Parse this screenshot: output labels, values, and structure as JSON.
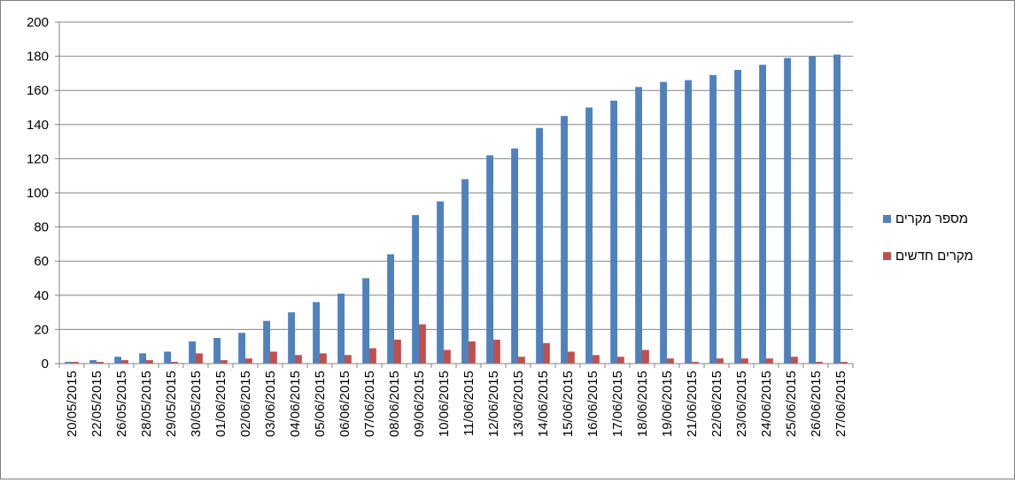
{
  "chart_data": {
    "type": "bar",
    "title": "",
    "xlabel": "",
    "ylabel": "",
    "ylim": [
      0,
      200
    ],
    "yticks": [
      0,
      20,
      40,
      60,
      80,
      100,
      120,
      140,
      160,
      180,
      200
    ],
    "grid": "horizontal",
    "legend_position": "right",
    "categories": [
      "20/05/2015",
      "22/05/2015",
      "26/05/2015",
      "28/05/2015",
      "29/05/2015",
      "30/05/2015",
      "01/06/2015",
      "02/06/2015",
      "03/06/2015",
      "04/06/2015",
      "05/06/2015",
      "06/06/2015",
      "07/06/2015",
      "08/06/2015",
      "09/06/2015",
      "10/06/2015",
      "11/06/2015",
      "12/06/2015",
      "13/06/2015",
      "14/06/2015",
      "15/06/2015",
      "16/06/2015",
      "17/06/2015",
      "18/06/2015",
      "19/06/2015",
      "21/06/2015",
      "22/06/2015",
      "23/06/2015",
      "24/06/2015",
      "25/06/2015",
      "26/06/2015",
      "27/06/2015"
    ],
    "series": [
      {
        "name": "מספר מקרים",
        "color": "#4f81bd",
        "values": [
          1,
          2,
          4,
          6,
          7,
          13,
          15,
          18,
          25,
          30,
          36,
          41,
          50,
          64,
          87,
          95,
          108,
          122,
          126,
          138,
          145,
          150,
          154,
          162,
          165,
          166,
          169,
          172,
          175,
          179,
          180,
          181
        ]
      },
      {
        "name": "מקרים חדשים",
        "color": "#c0504d",
        "values": [
          1,
          1,
          2,
          2,
          1,
          6,
          2,
          3,
          7,
          5,
          6,
          5,
          9,
          14,
          23,
          8,
          13,
          14,
          4,
          12,
          7,
          5,
          4,
          8,
          3,
          1,
          3,
          3,
          3,
          4,
          1,
          1
        ]
      }
    ]
  }
}
